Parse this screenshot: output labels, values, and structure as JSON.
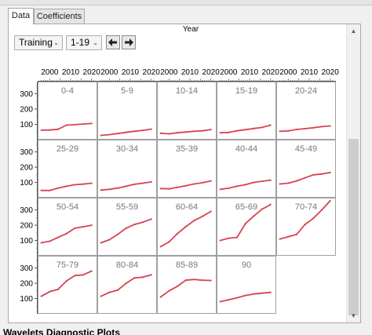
{
  "tabs": [
    {
      "label": "Data",
      "active": true
    },
    {
      "label": "Coefficients",
      "active": false
    }
  ],
  "toolbar": {
    "subset_value": "Training",
    "range_value": "1-19",
    "prev_icon": "arrow-left-icon",
    "next_icon": "arrow-right-icon"
  },
  "chart_data": {
    "type": "line",
    "title": "Year",
    "x_ticks": [
      "2000",
      "2010",
      "2020"
    ],
    "x_range": [
      1995,
      2022
    ],
    "y_ticks": [
      "100",
      "200",
      "300"
    ],
    "y_range": [
      0,
      380
    ],
    "line_color": "#d9434f",
    "point_color": "#777777",
    "panels": [
      {
        "label": "0-4",
        "points": [
          [
            1996,
            62
          ],
          [
            2000,
            63
          ],
          [
            2004,
            68
          ],
          [
            2008,
            95
          ],
          [
            2012,
            98
          ],
          [
            2016,
            102
          ],
          [
            2020,
            106
          ]
        ]
      },
      {
        "label": "5-9",
        "points": [
          [
            1996,
            28
          ],
          [
            2000,
            33
          ],
          [
            2004,
            40
          ],
          [
            2008,
            48
          ],
          [
            2012,
            55
          ],
          [
            2016,
            61
          ],
          [
            2020,
            69
          ]
        ]
      },
      {
        "label": "10-14",
        "points": [
          [
            1996,
            42
          ],
          [
            2000,
            38
          ],
          [
            2004,
            45
          ],
          [
            2008,
            50
          ],
          [
            2012,
            55
          ],
          [
            2016,
            58
          ],
          [
            2020,
            66
          ]
        ]
      },
      {
        "label": "15-19",
        "points": [
          [
            1996,
            45
          ],
          [
            2000,
            47
          ],
          [
            2004,
            58
          ],
          [
            2008,
            65
          ],
          [
            2012,
            73
          ],
          [
            2016,
            80
          ],
          [
            2020,
            95
          ]
        ]
      },
      {
        "label": "20-24",
        "points": [
          [
            1996,
            55
          ],
          [
            2000,
            57
          ],
          [
            2004,
            67
          ],
          [
            2008,
            72
          ],
          [
            2012,
            78
          ],
          [
            2016,
            85
          ],
          [
            2020,
            90
          ]
        ]
      },
      {
        "label": "25-29",
        "points": [
          [
            1996,
            48
          ],
          [
            2000,
            47
          ],
          [
            2004,
            63
          ],
          [
            2008,
            75
          ],
          [
            2012,
            85
          ],
          [
            2016,
            89
          ],
          [
            2020,
            95
          ]
        ]
      },
      {
        "label": "30-34",
        "points": [
          [
            1996,
            50
          ],
          [
            2000,
            55
          ],
          [
            2004,
            63
          ],
          [
            2008,
            75
          ],
          [
            2012,
            88
          ],
          [
            2016,
            95
          ],
          [
            2020,
            103
          ]
        ]
      },
      {
        "label": "35-39",
        "points": [
          [
            1996,
            60
          ],
          [
            2000,
            58
          ],
          [
            2004,
            68
          ],
          [
            2008,
            78
          ],
          [
            2012,
            90
          ],
          [
            2016,
            98
          ],
          [
            2020,
            110
          ]
        ]
      },
      {
        "label": "40-44",
        "points": [
          [
            1996,
            55
          ],
          [
            2000,
            62
          ],
          [
            2004,
            75
          ],
          [
            2008,
            85
          ],
          [
            2012,
            100
          ],
          [
            2016,
            108
          ],
          [
            2020,
            115
          ]
        ]
      },
      {
        "label": "45-49",
        "points": [
          [
            1996,
            90
          ],
          [
            2000,
            95
          ],
          [
            2004,
            110
          ],
          [
            2008,
            130
          ],
          [
            2012,
            150
          ],
          [
            2016,
            155
          ],
          [
            2020,
            165
          ]
        ]
      },
      {
        "label": "50-54",
        "points": [
          [
            1996,
            85
          ],
          [
            2000,
            95
          ],
          [
            2004,
            120
          ],
          [
            2008,
            145
          ],
          [
            2012,
            180
          ],
          [
            2016,
            190
          ],
          [
            2020,
            200
          ]
        ]
      },
      {
        "label": "55-59",
        "points": [
          [
            1996,
            85
          ],
          [
            2000,
            105
          ],
          [
            2004,
            140
          ],
          [
            2008,
            180
          ],
          [
            2012,
            205
          ],
          [
            2016,
            220
          ],
          [
            2020,
            240
          ]
        ]
      },
      {
        "label": "60-64",
        "points": [
          [
            1996,
            60
          ],
          [
            2000,
            90
          ],
          [
            2004,
            145
          ],
          [
            2008,
            190
          ],
          [
            2012,
            230
          ],
          [
            2016,
            258
          ],
          [
            2020,
            290
          ]
        ]
      },
      {
        "label": "65-69",
        "points": [
          [
            1996,
            100
          ],
          [
            2000,
            115
          ],
          [
            2004,
            120
          ],
          [
            2008,
            210
          ],
          [
            2012,
            260
          ],
          [
            2016,
            305
          ],
          [
            2020,
            335
          ]
        ]
      },
      {
        "label": "70-74",
        "points": [
          [
            1996,
            110
          ],
          [
            2000,
            125
          ],
          [
            2004,
            140
          ],
          [
            2008,
            205
          ],
          [
            2012,
            245
          ],
          [
            2016,
            300
          ],
          [
            2020,
            360
          ]
        ]
      },
      {
        "label": "75-79",
        "points": [
          [
            1996,
            115
          ],
          [
            2000,
            145
          ],
          [
            2004,
            160
          ],
          [
            2008,
            215
          ],
          [
            2012,
            250
          ],
          [
            2016,
            255
          ],
          [
            2020,
            280
          ]
        ]
      },
      {
        "label": "80-84",
        "points": [
          [
            1996,
            115
          ],
          [
            2000,
            140
          ],
          [
            2004,
            155
          ],
          [
            2008,
            200
          ],
          [
            2012,
            235
          ],
          [
            2016,
            240
          ],
          [
            2020,
            255
          ]
        ]
      },
      {
        "label": "85-89",
        "points": [
          [
            1996,
            110
          ],
          [
            2000,
            150
          ],
          [
            2004,
            180
          ],
          [
            2008,
            220
          ],
          [
            2012,
            225
          ],
          [
            2016,
            220
          ],
          [
            2020,
            218
          ]
        ]
      },
      {
        "label": "90",
        "points": [
          [
            1996,
            80
          ],
          [
            2000,
            92
          ],
          [
            2004,
            105
          ],
          [
            2008,
            120
          ],
          [
            2012,
            130
          ],
          [
            2016,
            135
          ],
          [
            2020,
            140
          ]
        ]
      }
    ]
  },
  "bottom_section": {
    "title": "Wavelets Diagnostic Plots"
  }
}
